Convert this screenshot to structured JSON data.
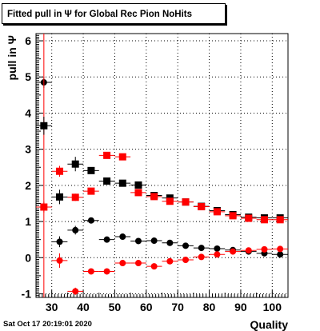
{
  "title": "Fitted pull in  Ψ  for Global Rec Pion NoHits",
  "footer_date": "Sat Oct 17 20:19:01 2020",
  "chart_data": {
    "type": "scatter",
    "title": "Fitted pull in  Ψ  for Global Rec Pion NoHits",
    "xlabel": "Quality",
    "ylabel": "pull in  Ψ",
    "xlim": [
      25,
      105
    ],
    "ylim": [
      -1.1,
      6.2
    ],
    "xticks": [
      30,
      40,
      50,
      60,
      70,
      80,
      90,
      100
    ],
    "yticks": [
      -1,
      0,
      1,
      2,
      3,
      4,
      5,
      6
    ],
    "grid": true,
    "x_error": 2.5,
    "series": [
      {
        "marker": "circle",
        "color": "#000000",
        "x": [
          27.5,
          32.5,
          37.5,
          42.5,
          47.5,
          52.5,
          57.5,
          62.5,
          67.5,
          72.5,
          77.5,
          82.5,
          87.5,
          92.5,
          97.5,
          102.5
        ],
        "y": [
          4.85,
          0.44,
          0.76,
          1.03,
          0.5,
          0.58,
          0.46,
          0.47,
          0.41,
          0.33,
          0.27,
          0.25,
          0.21,
          0.17,
          0.12,
          0.09
        ],
        "yerr": [
          0.15,
          0.15,
          0.12,
          0.07,
          0.06,
          0.05,
          0.04,
          0.04,
          0.03,
          0.03,
          0.03,
          0.03,
          0.03,
          0.03,
          0.03,
          0.03
        ]
      },
      {
        "marker": "circle",
        "color": "#ff0000",
        "x": [
          27.5,
          32.5,
          37.5,
          42.5,
          47.5,
          52.5,
          57.5,
          62.5,
          67.5,
          72.5,
          77.5,
          82.5,
          87.5,
          92.5,
          97.5,
          102.5
        ],
        "y": [
          1.4,
          -0.08,
          -0.93,
          -0.38,
          -0.38,
          -0.15,
          -0.15,
          -0.24,
          -0.1,
          -0.06,
          0.02,
          0.09,
          0.17,
          0.2,
          0.23,
          0.24
        ],
        "yerr": [
          6.5,
          0.2,
          0.1,
          0.06,
          0.05,
          0.05,
          0.04,
          0.04,
          0.03,
          0.03,
          0.03,
          0.03,
          0.03,
          0.03,
          0.03,
          0.03
        ]
      },
      {
        "marker": "square",
        "color": "#000000",
        "x": [
          27.5,
          32.5,
          37.5,
          42.5,
          47.5,
          52.5,
          57.5,
          62.5,
          67.5,
          72.5,
          77.5,
          82.5,
          87.5,
          92.5,
          97.5,
          102.5
        ],
        "y": [
          3.65,
          1.68,
          2.59,
          2.41,
          2.12,
          2.06,
          2.01,
          1.72,
          1.65,
          1.54,
          1.42,
          1.3,
          1.19,
          1.12,
          1.1,
          1.1
        ],
        "yerr": [
          0.25,
          0.2,
          0.2,
          0.08,
          0.06,
          0.05,
          0.04,
          0.04,
          0.03,
          0.03,
          0.03,
          0.03,
          0.03,
          0.03,
          0.03,
          0.03
        ]
      },
      {
        "marker": "square",
        "color": "#ff0000",
        "x": [
          27.5,
          32.5,
          37.5,
          42.5,
          47.5,
          52.5,
          57.5,
          62.5,
          67.5,
          72.5,
          77.5,
          82.5,
          87.5,
          92.5,
          97.5,
          102.5
        ],
        "y": [
          1.4,
          2.39,
          1.67,
          1.84,
          2.83,
          2.79,
          1.8,
          1.69,
          1.56,
          1.54,
          1.41,
          1.27,
          1.16,
          1.09,
          1.05,
          1.05
        ],
        "yerr": [
          0.15,
          0.15,
          0.1,
          0.06,
          0.06,
          0.05,
          0.04,
          0.04,
          0.03,
          0.03,
          0.03,
          0.03,
          0.03,
          0.03,
          0.03,
          0.03
        ]
      }
    ]
  }
}
